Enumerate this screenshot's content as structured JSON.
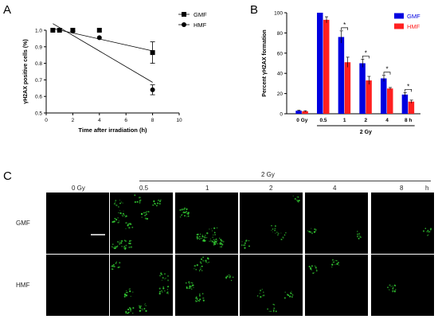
{
  "panels": {
    "a": "A",
    "b": "B",
    "c": "C"
  },
  "chart_data": [
    {
      "type": "scatter",
      "ylabel": "γH2AX positive cells (%)",
      "xlabel": "Time after irradiation (h)",
      "xlim": [
        0,
        10
      ],
      "ylim": [
        0.5,
        1.0
      ],
      "xticks": [
        0,
        2,
        4,
        6,
        8,
        10
      ],
      "yticks": [
        0.5,
        0.6,
        0.7,
        0.8,
        0.9,
        1.0
      ],
      "legend_position": "top-right",
      "series": [
        {
          "name": "GMF",
          "marker": "square",
          "x": [
            0.5,
            1,
            2,
            4,
            8
          ],
          "y": [
            1.0,
            1.0,
            1.0,
            1.0,
            0.865
          ],
          "err": [
            0,
            0,
            0,
            0,
            0.065
          ],
          "fit": [
            [
              0.5,
              1.01
            ],
            [
              8,
              0.875
            ]
          ]
        },
        {
          "name": "HMF",
          "marker": "circle",
          "x": [
            0.5,
            1,
            2,
            4,
            8
          ],
          "y": [
            1.0,
            1.0,
            0.995,
            0.955,
            0.64
          ],
          "err": [
            0,
            0,
            0,
            0,
            0.03
          ],
          "fit": [
            [
              0.5,
              1.04
            ],
            [
              8,
              0.685
            ]
          ]
        }
      ]
    },
    {
      "type": "bar",
      "ylabel": "Percent γH2AX formation",
      "categories": [
        "0 Gy",
        "0.5",
        "1",
        "2",
        "4",
        "8 h"
      ],
      "group_label": "2 Gy",
      "ylim": [
        0,
        100
      ],
      "yticks": [
        0,
        20,
        40,
        60,
        80,
        100
      ],
      "legend_position": "top-right",
      "significance": [
        "1",
        "2",
        "4",
        "8 h"
      ],
      "sig_mark": "*",
      "series": [
        {
          "name": "GMF",
          "color": "#0000e0",
          "values": [
            3,
            100,
            76,
            50,
            35,
            19
          ],
          "err": [
            0.5,
            0,
            6,
            4,
            3,
            2
          ]
        },
        {
          "name": "HMF",
          "color": "#ff2020",
          "values": [
            2.5,
            93,
            51,
            33,
            25,
            12
          ],
          "err": [
            0.5,
            3,
            5,
            4,
            1,
            1.5
          ]
        }
      ]
    }
  ],
  "microscopy": {
    "group_label": "2 Gy",
    "column_labels": [
      "0 Gy",
      "0.5",
      "1",
      "2",
      "4",
      "8"
    ],
    "unit_label": "h",
    "row_labels": [
      "GMF",
      "HMF"
    ],
    "foci_color": "#33cc33",
    "density": [
      [
        0,
        60,
        45,
        26,
        14,
        6
      ],
      [
        0,
        38,
        30,
        16,
        9,
        4
      ]
    ]
  }
}
